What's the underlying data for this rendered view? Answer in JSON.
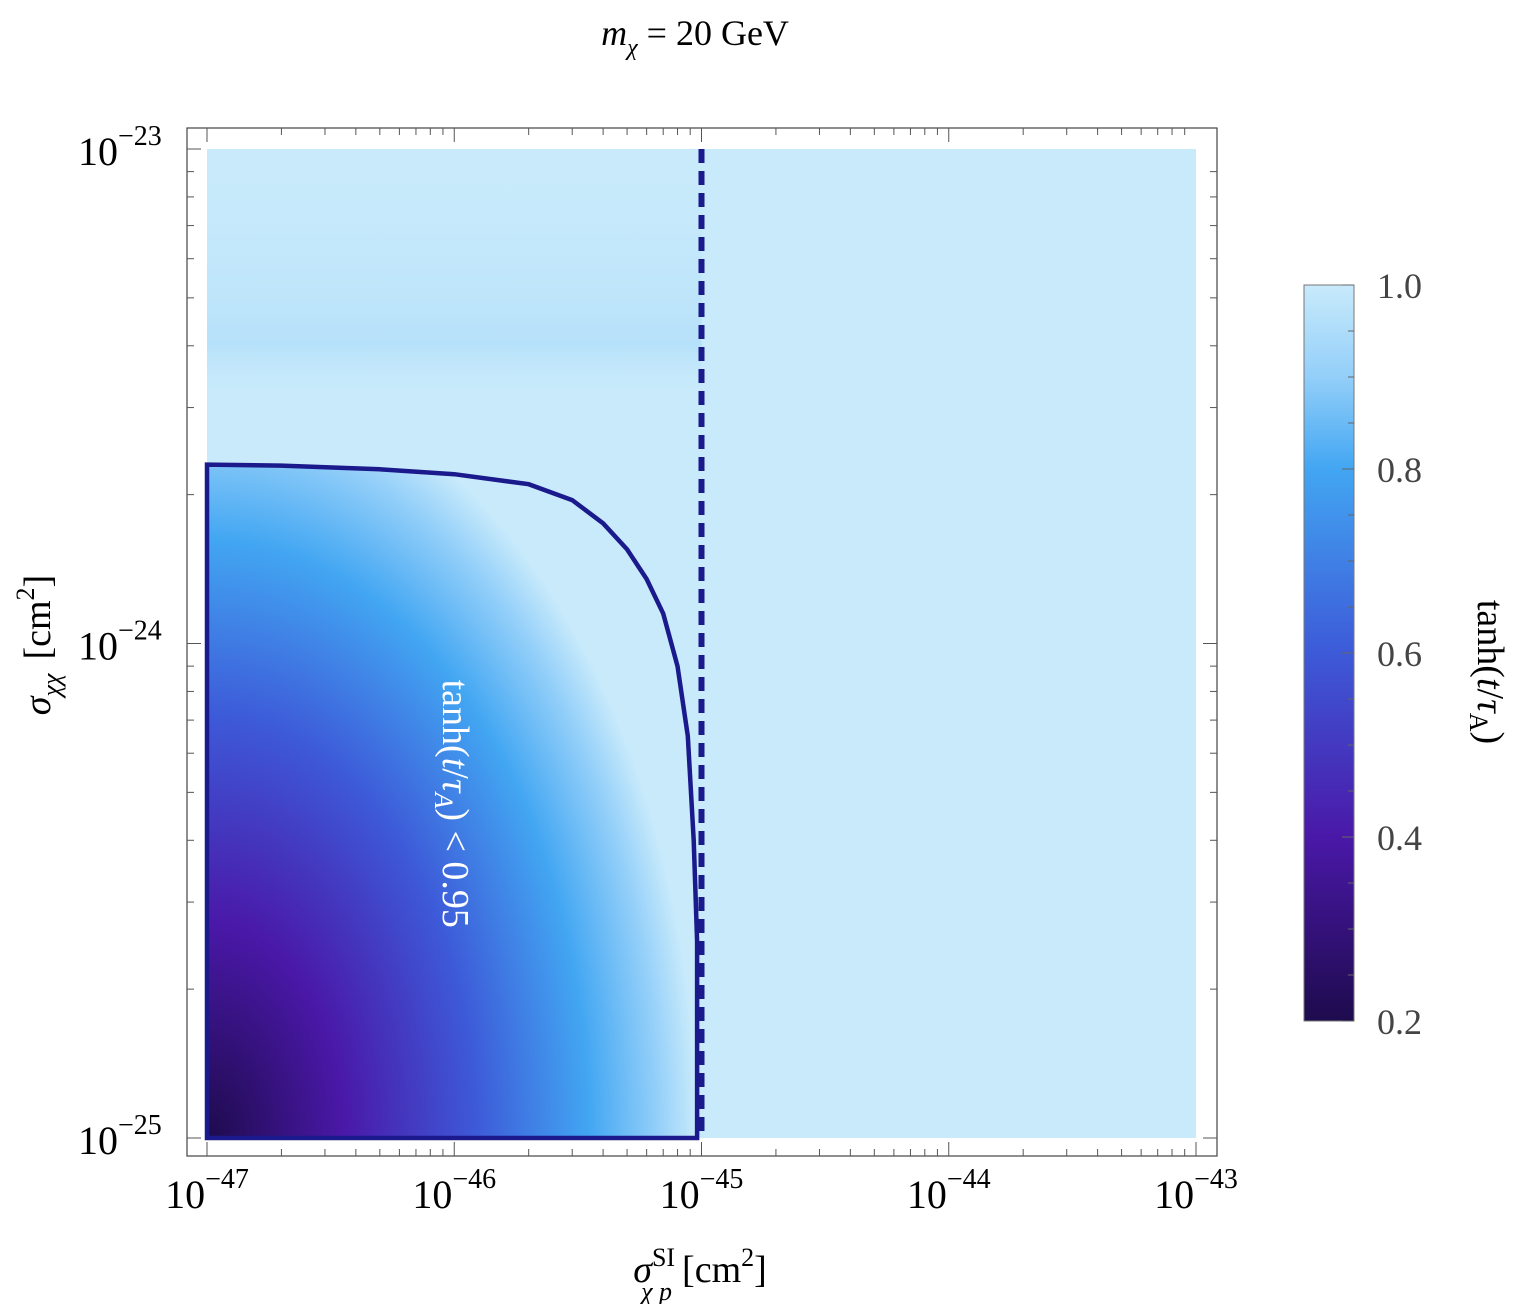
{
  "chart_data": {
    "type": "heatmap",
    "title": "m_χ = 20 GeV",
    "title_parts": {
      "var": "m",
      "sub": "χ",
      "rest": " = 20 GeV"
    },
    "xlabel": "σ^SI_χp [cm²]",
    "xlabel_parts": {
      "sym": "σ",
      "sup": "SI",
      "sub": "χ p",
      "unit": "[cm",
      "unit_sup": "2",
      "unit_end": "]"
    },
    "ylabel": "σ_χχ [cm²]",
    "ylabel_parts": {
      "sym": "σ",
      "sub": "χχ",
      "unit": "[cm",
      "unit_sup": "2",
      "unit_end": "]"
    },
    "x_scale": "log",
    "y_scale": "log",
    "xlim": [
      1e-47,
      1e-43
    ],
    "ylim": [
      1e-25,
      1e-23
    ],
    "x_ticks": [
      {
        "value": 1e-47,
        "base": "10",
        "exp": "−47"
      },
      {
        "value": 1e-46,
        "base": "10",
        "exp": "−46"
      },
      {
        "value": 1e-45,
        "base": "10",
        "exp": "−45"
      },
      {
        "value": 1e-44,
        "base": "10",
        "exp": "−44"
      },
      {
        "value": 1e-43,
        "base": "10",
        "exp": "−43"
      }
    ],
    "y_ticks": [
      {
        "value": 1e-25,
        "base": "10",
        "exp": "−25"
      },
      {
        "value": 1e-24,
        "base": "10",
        "exp": "−24"
      },
      {
        "value": 1e-23,
        "base": "10",
        "exp": "−23"
      }
    ],
    "colorbar": {
      "label": "tanh(t/τ_A)",
      "label_parts": {
        "pre": "tanh(",
        "t": "t",
        "slash": "/",
        "tau": "τ",
        "sub": "A",
        "post": ")"
      },
      "range": [
        0.2,
        1.0
      ],
      "ticks": [
        {
          "value": 1.0,
          "label": "1.0"
        },
        {
          "value": 0.8,
          "label": "0.8"
        },
        {
          "value": 0.6,
          "label": "0.6"
        },
        {
          "value": 0.4,
          "label": "0.4"
        },
        {
          "value": 0.2,
          "label": "0.2"
        }
      ],
      "stops": [
        {
          "value": 0.2,
          "color": "#1e0b4d"
        },
        {
          "value": 0.4,
          "color": "#4a18a8"
        },
        {
          "value": 0.6,
          "color": "#3d5ad8"
        },
        {
          "value": 0.8,
          "color": "#42a6f2"
        },
        {
          "value": 0.9,
          "color": "#93cff9"
        },
        {
          "value": 1.0,
          "color": "#c8eafb"
        }
      ]
    },
    "contour": {
      "level": 0.95,
      "label": "tanh(t/τ_A) < 0.95",
      "label_parts": {
        "pre": "tanh(",
        "t": "t",
        "slash": "/",
        "tau": "τ",
        "sub": "A",
        "post": ") < 0.95"
      },
      "color": "#1a1a8c",
      "points": [
        [
          1e-47,
          2.3e-24
        ],
        [
          2e-47,
          2.29e-24
        ],
        [
          5e-47,
          2.25e-24
        ],
        [
          1e-46,
          2.2e-24
        ],
        [
          2e-46,
          2.1e-24
        ],
        [
          3e-46,
          1.95e-24
        ],
        [
          4e-46,
          1.75e-24
        ],
        [
          5e-46,
          1.55e-24
        ],
        [
          6e-46,
          1.35e-24
        ],
        [
          7e-46,
          1.15e-24
        ],
        [
          8e-46,
          9e-25
        ],
        [
          8.8e-46,
          6.5e-25
        ],
        [
          9.3e-46,
          4e-25
        ],
        [
          9.6e-46,
          2.5e-25
        ],
        [
          9.6e-46,
          1e-25
        ],
        [
          1e-47,
          1e-25
        ],
        [
          1e-47,
          2.3e-24
        ]
      ]
    },
    "vertical_line": {
      "x": 1e-45,
      "style": "dashed",
      "color": "#1a1a8c"
    }
  }
}
